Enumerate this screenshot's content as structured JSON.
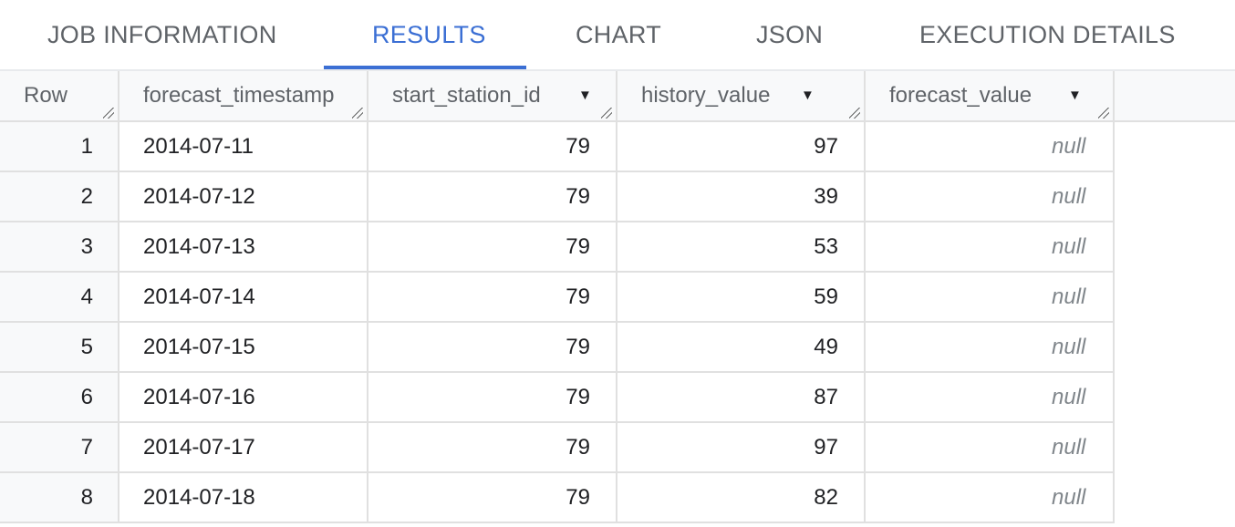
{
  "tabs": [
    {
      "label": "JOB INFORMATION"
    },
    {
      "label": "RESULTS",
      "active": true
    },
    {
      "label": "CHART"
    },
    {
      "label": "JSON"
    },
    {
      "label": "EXECUTION DETAILS"
    }
  ],
  "accent_color": "#3b6fd4",
  "table": {
    "columns": [
      {
        "label": "Row"
      },
      {
        "label": "forecast_timestamp"
      },
      {
        "label": "start_station_id",
        "menu": true
      },
      {
        "label": "history_value",
        "menu": true
      },
      {
        "label": "forecast_value",
        "menu": true
      }
    ],
    "rows": [
      {
        "row": "1",
        "forecast_timestamp": "2014-07-11",
        "start_station_id": "79",
        "history_value": "97",
        "forecast_value": "null"
      },
      {
        "row": "2",
        "forecast_timestamp": "2014-07-12",
        "start_station_id": "79",
        "history_value": "39",
        "forecast_value": "null"
      },
      {
        "row": "3",
        "forecast_timestamp": "2014-07-13",
        "start_station_id": "79",
        "history_value": "53",
        "forecast_value": "null"
      },
      {
        "row": "4",
        "forecast_timestamp": "2014-07-14",
        "start_station_id": "79",
        "history_value": "59",
        "forecast_value": "null"
      },
      {
        "row": "5",
        "forecast_timestamp": "2014-07-15",
        "start_station_id": "79",
        "history_value": "49",
        "forecast_value": "null"
      },
      {
        "row": "6",
        "forecast_timestamp": "2014-07-16",
        "start_station_id": "79",
        "history_value": "87",
        "forecast_value": "null"
      },
      {
        "row": "7",
        "forecast_timestamp": "2014-07-17",
        "start_station_id": "79",
        "history_value": "97",
        "forecast_value": "null"
      },
      {
        "row": "8",
        "forecast_timestamp": "2014-07-18",
        "start_station_id": "79",
        "history_value": "82",
        "forecast_value": "null"
      }
    ]
  }
}
